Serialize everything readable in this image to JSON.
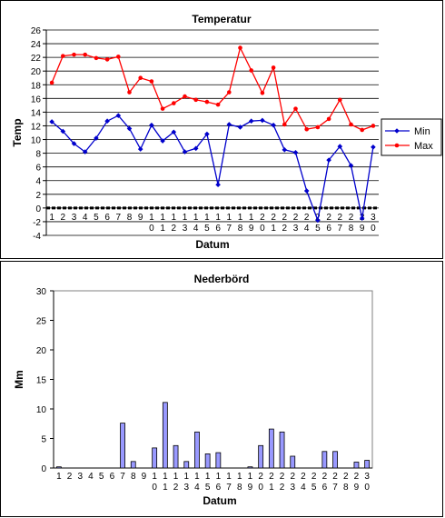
{
  "chart_data": [
    {
      "type": "line",
      "title": "Temperatur",
      "xlabel": "Datum",
      "ylabel": "Temp",
      "ylim": [
        -4,
        26
      ],
      "yticks": [
        -4,
        -2,
        0,
        2,
        4,
        6,
        8,
        10,
        12,
        14,
        16,
        18,
        20,
        22,
        24,
        26
      ],
      "grid": true,
      "legend": "right",
      "categories": [
        "1",
        "2",
        "3",
        "4",
        "5",
        "6",
        "7",
        "8",
        "9",
        "10",
        "11",
        "12",
        "13",
        "14",
        "15",
        "16",
        "17",
        "18",
        "19",
        "20",
        "21",
        "22",
        "23",
        "24",
        "25",
        "26",
        "27",
        "28",
        "29",
        "30"
      ],
      "series": [
        {
          "name": "Min",
          "color": "#0000cc",
          "marker": "diamond",
          "values": [
            12.6,
            11.2,
            9.4,
            8.2,
            10.2,
            12.7,
            13.5,
            11.6,
            8.6,
            12.1,
            9.8,
            11.1,
            8.2,
            8.7,
            10.8,
            3.4,
            12.2,
            11.8,
            12.7,
            12.8,
            12.1,
            8.5,
            8.1,
            2.5,
            -1.8,
            7.0,
            9.0,
            6.2,
            -1.5,
            8.9
          ]
        },
        {
          "name": "Max",
          "color": "#ff0000",
          "marker": "circle",
          "values": [
            18.3,
            22.2,
            22.4,
            22.4,
            21.9,
            21.7,
            22.1,
            16.9,
            19.0,
            18.5,
            14.5,
            15.3,
            16.3,
            15.8,
            15.5,
            15.1,
            16.9,
            23.4,
            20.1,
            16.8,
            20.5,
            12.2,
            14.5,
            11.5,
            11.8,
            13.0,
            15.8,
            12.2,
            11.4,
            12.0
          ]
        }
      ]
    },
    {
      "type": "bar",
      "title": "Nederbörd",
      "xlabel": "Datum",
      "ylabel": "Mm",
      "ylim": [
        0,
        30
      ],
      "yticks": [
        0,
        5,
        10,
        15,
        20,
        25,
        30
      ],
      "grid": false,
      "color": "#9999ff",
      "categories": [
        "1",
        "2",
        "3",
        "4",
        "5",
        "6",
        "7",
        "8",
        "9",
        "10",
        "11",
        "12",
        "13",
        "14",
        "15",
        "16",
        "17",
        "18",
        "19",
        "20",
        "21",
        "22",
        "23",
        "24",
        "25",
        "26",
        "27",
        "28",
        "29",
        "30"
      ],
      "values": [
        0.2,
        0,
        0,
        0,
        0,
        0,
        7.6,
        1.1,
        0,
        3.4,
        11.1,
        3.8,
        1.1,
        6.1,
        2.4,
        2.6,
        0,
        0,
        0.2,
        3.8,
        6.6,
        6.1,
        2.0,
        0,
        0,
        2.8,
        2.8,
        0,
        1.0,
        1.3
      ]
    }
  ]
}
